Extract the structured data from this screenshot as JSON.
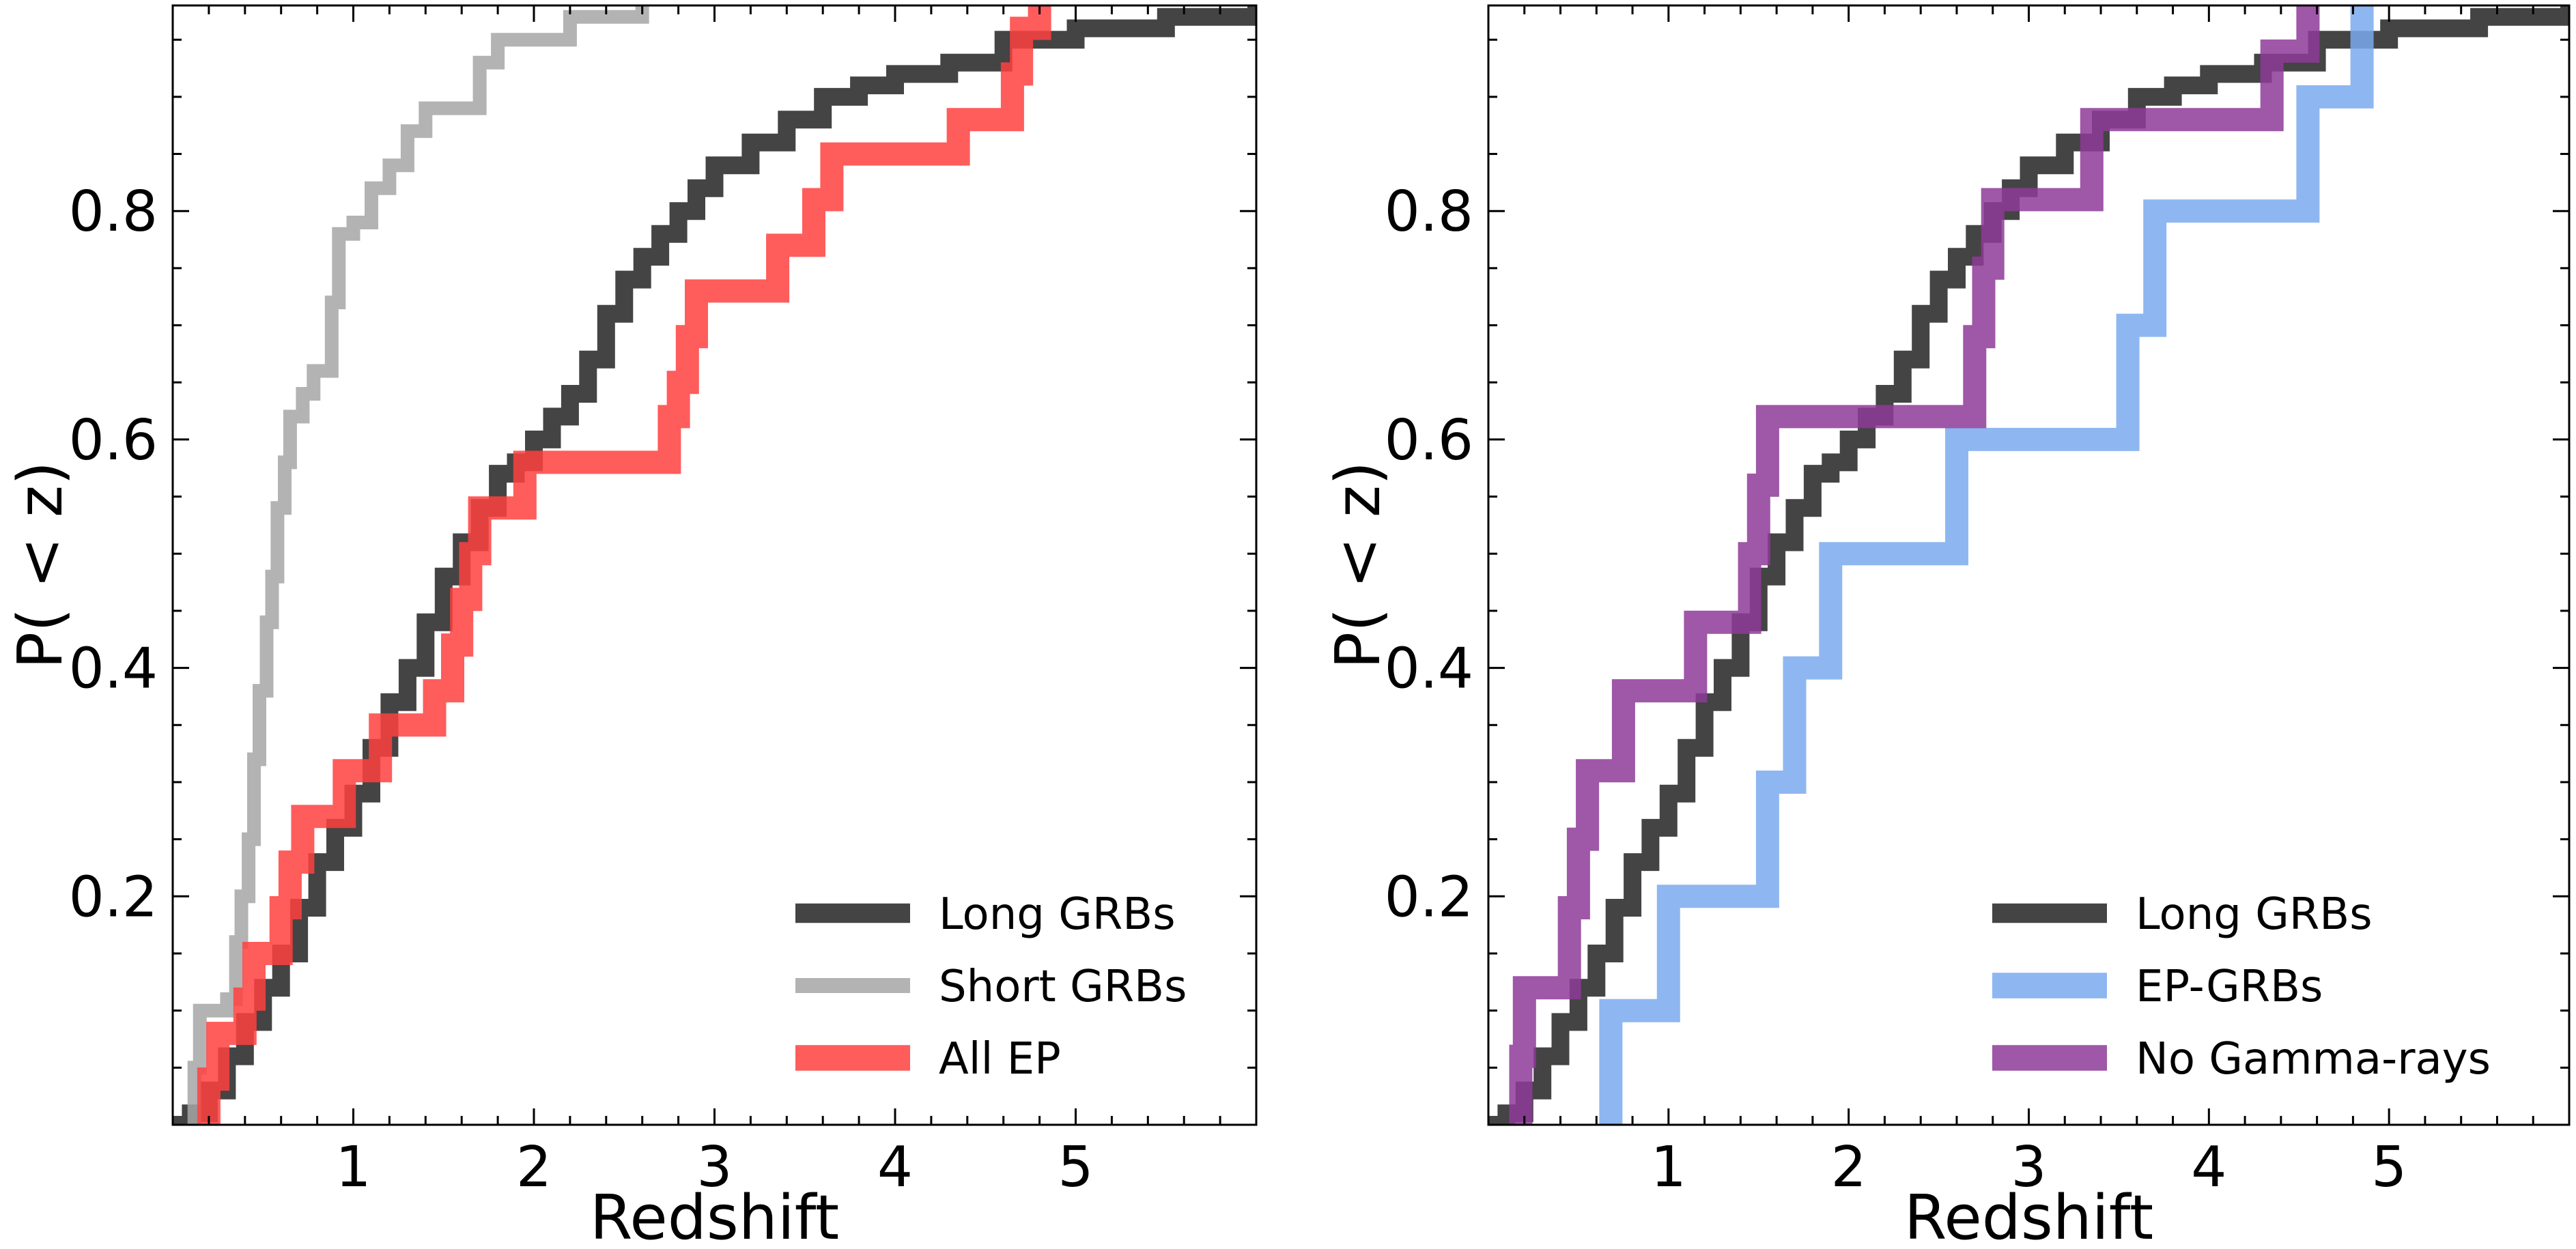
{
  "chart_data": [
    {
      "type": "line",
      "subtype": "step-cdf",
      "xlabel": "Redshift",
      "ylabel": "P( < z)",
      "xlim": [
        0,
        6.0
      ],
      "ylim": [
        0,
        0.98
      ],
      "xticks": [
        1,
        2,
        3,
        4,
        5
      ],
      "yticks": [
        0.2,
        0.4,
        0.6,
        0.8
      ],
      "legend_position": "lower-right",
      "series": [
        {
          "name": "Long GRBs",
          "color": "#444444",
          "points": [
            [
              0.0,
              0.0
            ],
            [
              0.1,
              0.01
            ],
            [
              0.2,
              0.03
            ],
            [
              0.3,
              0.06
            ],
            [
              0.4,
              0.09
            ],
            [
              0.5,
              0.12
            ],
            [
              0.6,
              0.15
            ],
            [
              0.7,
              0.19
            ],
            [
              0.8,
              0.23
            ],
            [
              0.9,
              0.26
            ],
            [
              1.0,
              0.29
            ],
            [
              1.1,
              0.33
            ],
            [
              1.2,
              0.37
            ],
            [
              1.3,
              0.4
            ],
            [
              1.4,
              0.44
            ],
            [
              1.5,
              0.48
            ],
            [
              1.6,
              0.51
            ],
            [
              1.7,
              0.54
            ],
            [
              1.8,
              0.57
            ],
            [
              1.9,
              0.58
            ],
            [
              2.0,
              0.6
            ],
            [
              2.1,
              0.62
            ],
            [
              2.2,
              0.64
            ],
            [
              2.3,
              0.67
            ],
            [
              2.4,
              0.71
            ],
            [
              2.5,
              0.74
            ],
            [
              2.6,
              0.76
            ],
            [
              2.7,
              0.78
            ],
            [
              2.8,
              0.8
            ],
            [
              2.9,
              0.82
            ],
            [
              3.0,
              0.84
            ],
            [
              3.2,
              0.86
            ],
            [
              3.4,
              0.88
            ],
            [
              3.6,
              0.9
            ],
            [
              3.8,
              0.91
            ],
            [
              4.0,
              0.92
            ],
            [
              4.3,
              0.93
            ],
            [
              4.6,
              0.95
            ],
            [
              5.0,
              0.96
            ],
            [
              5.5,
              0.97
            ],
            [
              6.0,
              0.98
            ]
          ]
        },
        {
          "name": "Short GRBs",
          "color": "#a6a6a6",
          "points": [
            [
              0.1,
              0.0
            ],
            [
              0.12,
              0.05
            ],
            [
              0.15,
              0.1
            ],
            [
              0.3,
              0.11
            ],
            [
              0.35,
              0.16
            ],
            [
              0.38,
              0.2
            ],
            [
              0.42,
              0.25
            ],
            [
              0.45,
              0.32
            ],
            [
              0.48,
              0.38
            ],
            [
              0.52,
              0.44
            ],
            [
              0.55,
              0.48
            ],
            [
              0.58,
              0.54
            ],
            [
              0.62,
              0.58
            ],
            [
              0.65,
              0.62
            ],
            [
              0.72,
              0.64
            ],
            [
              0.78,
              0.66
            ],
            [
              0.88,
              0.72
            ],
            [
              0.92,
              0.78
            ],
            [
              1.0,
              0.79
            ],
            [
              1.1,
              0.82
            ],
            [
              1.2,
              0.84
            ],
            [
              1.3,
              0.87
            ],
            [
              1.4,
              0.89
            ],
            [
              1.6,
              0.89
            ],
            [
              1.7,
              0.93
            ],
            [
              1.8,
              0.95
            ],
            [
              2.2,
              0.97
            ],
            [
              2.6,
              0.98
            ]
          ]
        },
        {
          "name": "All EP",
          "color": "#ff4040",
          "points": [
            [
              0.15,
              0.0
            ],
            [
              0.2,
              0.04
            ],
            [
              0.25,
              0.08
            ],
            [
              0.35,
              0.08
            ],
            [
              0.4,
              0.11
            ],
            [
              0.45,
              0.15
            ],
            [
              0.55,
              0.15
            ],
            [
              0.6,
              0.19
            ],
            [
              0.65,
              0.23
            ],
            [
              0.72,
              0.27
            ],
            [
              0.9,
              0.27
            ],
            [
              0.95,
              0.31
            ],
            [
              1.1,
              0.31
            ],
            [
              1.15,
              0.35
            ],
            [
              1.4,
              0.35
            ],
            [
              1.45,
              0.38
            ],
            [
              1.55,
              0.42
            ],
            [
              1.6,
              0.46
            ],
            [
              1.65,
              0.5
            ],
            [
              1.7,
              0.54
            ],
            [
              1.9,
              0.54
            ],
            [
              1.95,
              0.58
            ],
            [
              2.65,
              0.58
            ],
            [
              2.75,
              0.62
            ],
            [
              2.8,
              0.65
            ],
            [
              2.85,
              0.69
            ],
            [
              2.9,
              0.73
            ],
            [
              3.3,
              0.73
            ],
            [
              3.35,
              0.77
            ],
            [
              3.5,
              0.77
            ],
            [
              3.55,
              0.81
            ],
            [
              3.65,
              0.85
            ],
            [
              4.3,
              0.85
            ],
            [
              4.35,
              0.88
            ],
            [
              4.6,
              0.88
            ],
            [
              4.65,
              0.92
            ],
            [
              4.7,
              0.96
            ],
            [
              4.8,
              0.98
            ]
          ]
        }
      ]
    },
    {
      "type": "line",
      "subtype": "step-cdf",
      "xlabel": "Redshift",
      "ylabel": "P( < z)",
      "xlim": [
        0,
        6.0
      ],
      "ylim": [
        0,
        0.98
      ],
      "xticks": [
        1,
        2,
        3,
        4,
        5
      ],
      "yticks": [
        0.2,
        0.4,
        0.6,
        0.8
      ],
      "legend_position": "lower-right",
      "series": [
        {
          "name": "Long GRBs",
          "color": "#444444",
          "points": [
            [
              0.0,
              0.0
            ],
            [
              0.1,
              0.01
            ],
            [
              0.2,
              0.03
            ],
            [
              0.3,
              0.06
            ],
            [
              0.4,
              0.09
            ],
            [
              0.5,
              0.12
            ],
            [
              0.6,
              0.15
            ],
            [
              0.7,
              0.19
            ],
            [
              0.8,
              0.23
            ],
            [
              0.9,
              0.26
            ],
            [
              1.0,
              0.29
            ],
            [
              1.1,
              0.33
            ],
            [
              1.2,
              0.37
            ],
            [
              1.3,
              0.4
            ],
            [
              1.4,
              0.44
            ],
            [
              1.5,
              0.48
            ],
            [
              1.6,
              0.51
            ],
            [
              1.7,
              0.54
            ],
            [
              1.8,
              0.57
            ],
            [
              1.9,
              0.58
            ],
            [
              2.0,
              0.6
            ],
            [
              2.1,
              0.62
            ],
            [
              2.2,
              0.64
            ],
            [
              2.3,
              0.67
            ],
            [
              2.4,
              0.71
            ],
            [
              2.5,
              0.74
            ],
            [
              2.6,
              0.76
            ],
            [
              2.7,
              0.78
            ],
            [
              2.8,
              0.8
            ],
            [
              2.9,
              0.82
            ],
            [
              3.0,
              0.84
            ],
            [
              3.2,
              0.86
            ],
            [
              3.4,
              0.88
            ],
            [
              3.6,
              0.9
            ],
            [
              3.8,
              0.91
            ],
            [
              4.0,
              0.92
            ],
            [
              4.3,
              0.93
            ],
            [
              4.6,
              0.95
            ],
            [
              5.0,
              0.96
            ],
            [
              5.5,
              0.97
            ],
            [
              6.0,
              0.98
            ]
          ]
        },
        {
          "name": "EP-GRBs",
          "color": "#7aaaee",
          "points": [
            [
              0.65,
              0.0
            ],
            [
              0.68,
              0.1
            ],
            [
              0.95,
              0.1
            ],
            [
              1.0,
              0.2
            ],
            [
              1.5,
              0.2
            ],
            [
              1.55,
              0.3
            ],
            [
              1.65,
              0.3
            ],
            [
              1.7,
              0.4
            ],
            [
              1.85,
              0.4
            ],
            [
              1.9,
              0.5
            ],
            [
              2.55,
              0.5
            ],
            [
              2.6,
              0.6
            ],
            [
              3.5,
              0.6
            ],
            [
              3.55,
              0.7
            ],
            [
              3.65,
              0.7
            ],
            [
              3.7,
              0.8
            ],
            [
              4.5,
              0.8
            ],
            [
              4.55,
              0.9
            ],
            [
              4.8,
              0.9
            ],
            [
              4.85,
              0.98
            ]
          ]
        },
        {
          "name": "No Gamma-rays",
          "color": "#8e3a98",
          "points": [
            [
              0.15,
              0.0
            ],
            [
              0.18,
              0.06
            ],
            [
              0.2,
              0.12
            ],
            [
              0.4,
              0.12
            ],
            [
              0.45,
              0.19
            ],
            [
              0.5,
              0.25
            ],
            [
              0.55,
              0.31
            ],
            [
              0.7,
              0.31
            ],
            [
              0.75,
              0.38
            ],
            [
              1.1,
              0.38
            ],
            [
              1.15,
              0.44
            ],
            [
              1.4,
              0.44
            ],
            [
              1.45,
              0.5
            ],
            [
              1.5,
              0.56
            ],
            [
              1.55,
              0.62
            ],
            [
              2.65,
              0.62
            ],
            [
              2.7,
              0.69
            ],
            [
              2.75,
              0.75
            ],
            [
              2.8,
              0.81
            ],
            [
              3.3,
              0.81
            ],
            [
              3.35,
              0.88
            ],
            [
              4.3,
              0.88
            ],
            [
              4.35,
              0.94
            ],
            [
              4.5,
              0.94
            ],
            [
              4.55,
              0.98
            ]
          ]
        }
      ]
    }
  ]
}
